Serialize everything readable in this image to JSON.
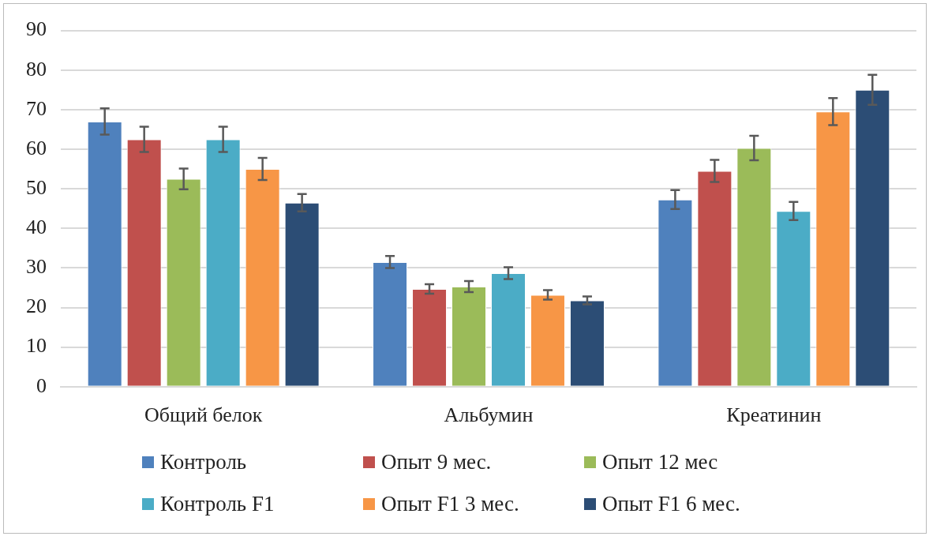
{
  "chart_data": {
    "type": "bar",
    "categories": [
      "Общий белок",
      "Альбумин",
      "Креатинин"
    ],
    "series": [
      {
        "name": "Контроль",
        "color": "#4f81bd",
        "values": [
          67,
          31.5,
          47.3
        ],
        "errors": [
          3.3,
          1.5,
          2.4
        ]
      },
      {
        "name": "Опыт 9 мес.",
        "color": "#c0504d",
        "values": [
          62.5,
          24.7,
          54.5
        ],
        "errors": [
          3.2,
          1.2,
          2.8
        ]
      },
      {
        "name": "Опыт 12 мес",
        "color": "#9bbb59",
        "values": [
          52.5,
          25.3,
          60.3
        ],
        "errors": [
          2.6,
          1.4,
          3.1
        ]
      },
      {
        "name": "Контроль F1",
        "color": "#4bacc6",
        "values": [
          62.5,
          28.7,
          44.4
        ],
        "errors": [
          3.2,
          1.5,
          2.3
        ]
      },
      {
        "name": "Опыт F1 3 мес.",
        "color": "#f79646",
        "values": [
          55,
          23.2,
          69.5
        ],
        "errors": [
          2.8,
          1.2,
          3.4
        ]
      },
      {
        "name": "Опыт F1 6 мес.",
        "color": "#2c4d75",
        "values": [
          46.5,
          21.8,
          75
        ],
        "errors": [
          2.2,
          1,
          3.8
        ]
      }
    ],
    "ylim": [
      0,
      90
    ],
    "yticks": [
      0,
      10,
      20,
      30,
      40,
      50,
      60,
      70,
      80,
      90
    ],
    "grid": "y",
    "legend": "bottom"
  }
}
